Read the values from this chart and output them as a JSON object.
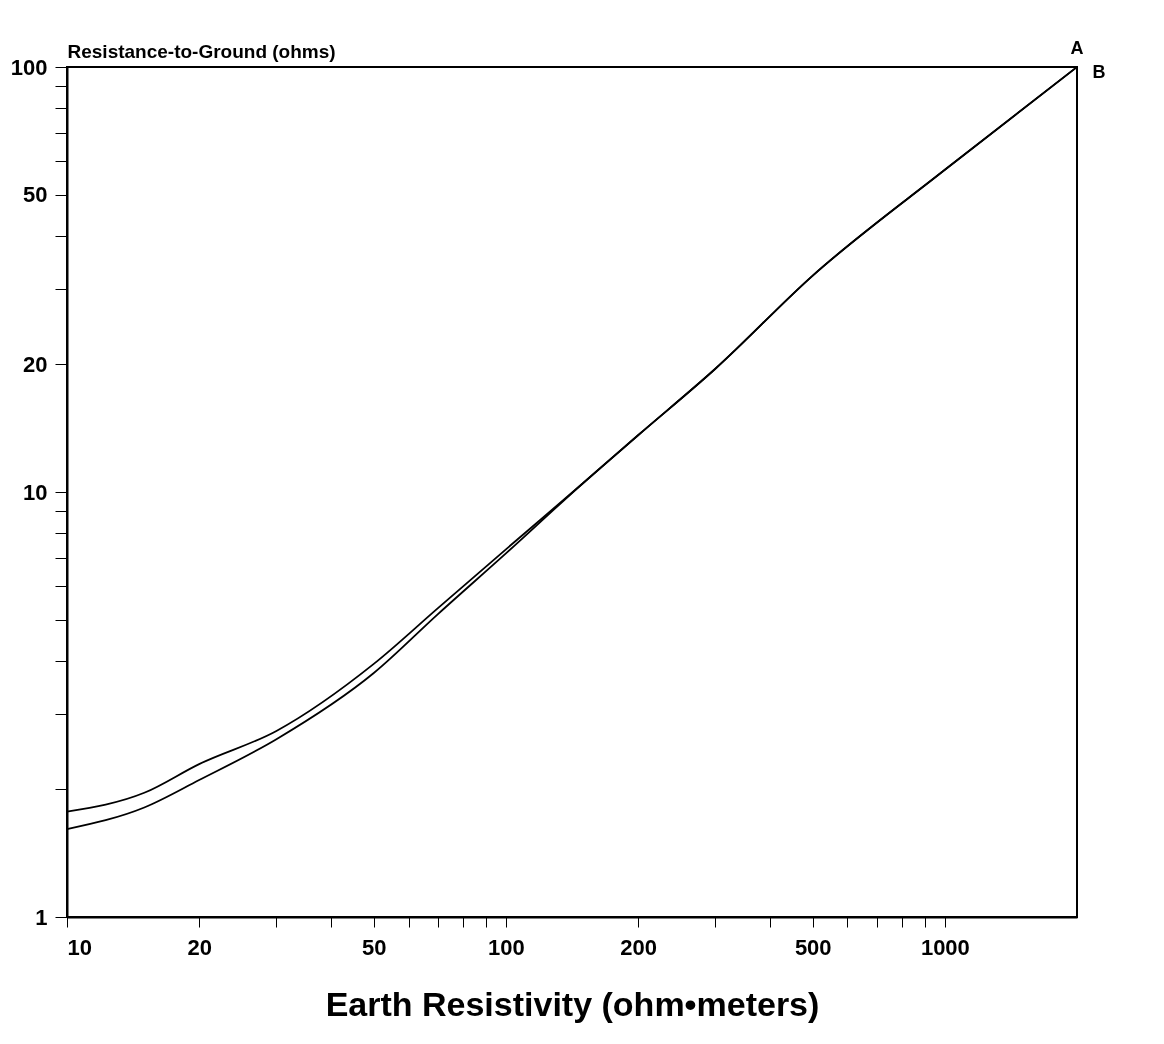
{
  "chart_data": {
    "type": "line",
    "xlabel": "Earth Resistivity (ohm•meters)",
    "ylabel": "Resistance-to-Ground (ohms)",
    "log": "xy",
    "xlim": [
      10,
      2000
    ],
    "ylim": [
      1,
      100
    ],
    "xticks": [
      10,
      20,
      {
        "value": 30,
        "label": null
      },
      {
        "value": 40,
        "label": null
      },
      50,
      {
        "value": 60,
        "label": null
      },
      {
        "value": 70,
        "label": null
      },
      {
        "value": 80,
        "label": null
      },
      {
        "value": 90,
        "label": null
      },
      100,
      200,
      {
        "value": 300,
        "label": null
      },
      {
        "value": 400,
        "label": null
      },
      500,
      {
        "value": 600,
        "label": null
      },
      {
        "value": 700,
        "label": null
      },
      {
        "value": 800,
        "label": null
      },
      {
        "value": 900,
        "label": null
      },
      1000
    ],
    "yticks": [
      1,
      {
        "value": 2,
        "label": null
      },
      {
        "value": 3,
        "label": null
      },
      {
        "value": 4,
        "label": null
      },
      {
        "value": 5,
        "label": null
      },
      {
        "value": 6,
        "label": null
      },
      {
        "value": 7,
        "label": null
      },
      {
        "value": 8,
        "label": null
      },
      {
        "value": 9,
        "label": null
      },
      10,
      20,
      {
        "value": 30,
        "label": null
      },
      {
        "value": 40,
        "label": null
      },
      50,
      {
        "value": 60,
        "label": null
      },
      {
        "value": 70,
        "label": null
      },
      {
        "value": 80,
        "label": null
      },
      {
        "value": 90,
        "label": null
      },
      100
    ],
    "x": [
      10,
      15,
      20,
      30,
      50,
      70,
      100,
      150,
      200,
      300,
      500,
      1000,
      2000
    ],
    "series": [
      {
        "name": "A",
        "color": "#000000",
        "values": [
          1.77,
          1.96,
          2.29,
          2.74,
          3.94,
          5.33,
          7.33,
          10.5,
          13.6,
          19.5,
          32.3,
          57.3,
          100
        ]
      },
      {
        "name": "B",
        "color": "#000000",
        "values": [
          1.61,
          1.81,
          2.1,
          2.62,
          3.75,
          5.16,
          7.17,
          10.5,
          13.6,
          19.5,
          32.3,
          57.3,
          100
        ]
      }
    ],
    "grid": false,
    "legend": false,
    "marker": "none",
    "line_style": "solid"
  }
}
